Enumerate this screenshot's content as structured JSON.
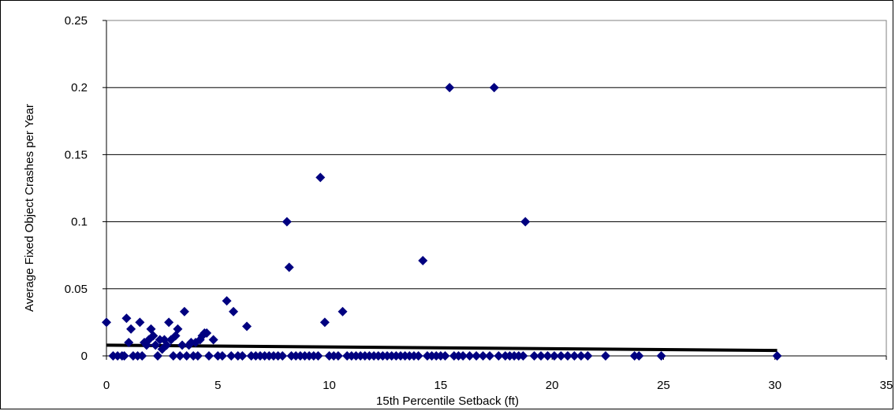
{
  "chart_data": {
    "type": "scatter",
    "title": "",
    "xlabel": "15th Percentile Setback (ft)",
    "ylabel": "Average Fixed Object Crashes per Year",
    "xlim": [
      0,
      35
    ],
    "ylim": [
      0,
      0.25
    ],
    "x_ticks": [
      "0",
      "5",
      "10",
      "15",
      "20",
      "25",
      "30",
      "35"
    ],
    "y_ticks": [
      "0",
      "0.05",
      "0.1",
      "0.15",
      "0.2",
      "0.25"
    ],
    "grid": "horizontal",
    "legend": "none",
    "colors": {
      "points": "#000080",
      "trend": "#000000",
      "grid": "#000000"
    },
    "series": [
      {
        "marker": "diamond",
        "points": [
          [
            0.0,
            0.025
          ],
          [
            0.3,
            0.0
          ],
          [
            0.5,
            0.0
          ],
          [
            0.7,
            0.0
          ],
          [
            0.8,
            0.0
          ],
          [
            0.9,
            0.028
          ],
          [
            1.0,
            0.01
          ],
          [
            1.1,
            0.02
          ],
          [
            1.2,
            0.0
          ],
          [
            1.4,
            0.0
          ],
          [
            1.5,
            0.025
          ],
          [
            1.6,
            0.0
          ],
          [
            1.7,
            0.01
          ],
          [
            1.8,
            0.008
          ],
          [
            1.9,
            0.012
          ],
          [
            2.0,
            0.02
          ],
          [
            2.1,
            0.015
          ],
          [
            2.2,
            0.008
          ],
          [
            2.3,
            0.0
          ],
          [
            2.4,
            0.012
          ],
          [
            2.5,
            0.005
          ],
          [
            2.6,
            0.012
          ],
          [
            2.7,
            0.008
          ],
          [
            2.8,
            0.025
          ],
          [
            2.9,
            0.012
          ],
          [
            3.0,
            0.0
          ],
          [
            3.1,
            0.015
          ],
          [
            3.2,
            0.02
          ],
          [
            3.3,
            0.0
          ],
          [
            3.4,
            0.008
          ],
          [
            3.5,
            0.033
          ],
          [
            3.6,
            0.0
          ],
          [
            3.7,
            0.008
          ],
          [
            3.8,
            0.01
          ],
          [
            3.9,
            0.0
          ],
          [
            4.0,
            0.01
          ],
          [
            4.1,
            0.0
          ],
          [
            4.2,
            0.012
          ],
          [
            4.3,
            0.015
          ],
          [
            4.4,
            0.017
          ],
          [
            4.5,
            0.017
          ],
          [
            4.6,
            0.0
          ],
          [
            4.8,
            0.012
          ],
          [
            5.0,
            0.0
          ],
          [
            5.2,
            0.0
          ],
          [
            5.4,
            0.041
          ],
          [
            5.6,
            0.0
          ],
          [
            5.7,
            0.033
          ],
          [
            5.9,
            0.0
          ],
          [
            6.1,
            0.0
          ],
          [
            6.3,
            0.022
          ],
          [
            6.5,
            0.0
          ],
          [
            6.7,
            0.0
          ],
          [
            6.9,
            0.0
          ],
          [
            7.1,
            0.0
          ],
          [
            7.3,
            0.0
          ],
          [
            7.5,
            0.0
          ],
          [
            7.7,
            0.0
          ],
          [
            7.9,
            0.0
          ],
          [
            8.1,
            0.1
          ],
          [
            8.2,
            0.066
          ],
          [
            8.3,
            0.0
          ],
          [
            8.5,
            0.0
          ],
          [
            8.7,
            0.0
          ],
          [
            8.9,
            0.0
          ],
          [
            9.1,
            0.0
          ],
          [
            9.3,
            0.0
          ],
          [
            9.5,
            0.0
          ],
          [
            9.6,
            0.133
          ],
          [
            9.8,
            0.025
          ],
          [
            10.0,
            0.0
          ],
          [
            10.2,
            0.0
          ],
          [
            10.4,
            0.0
          ],
          [
            10.6,
            0.033
          ],
          [
            10.8,
            0.0
          ],
          [
            11.0,
            0.0
          ],
          [
            11.2,
            0.0
          ],
          [
            11.4,
            0.0
          ],
          [
            11.6,
            0.0
          ],
          [
            11.8,
            0.0
          ],
          [
            12.0,
            0.0
          ],
          [
            12.2,
            0.0
          ],
          [
            12.4,
            0.0
          ],
          [
            12.6,
            0.0
          ],
          [
            12.8,
            0.0
          ],
          [
            13.0,
            0.0
          ],
          [
            13.2,
            0.0
          ],
          [
            13.4,
            0.0
          ],
          [
            13.6,
            0.0
          ],
          [
            13.8,
            0.0
          ],
          [
            14.0,
            0.0
          ],
          [
            14.2,
            0.071
          ],
          [
            14.4,
            0.0
          ],
          [
            14.6,
            0.0
          ],
          [
            14.8,
            0.0
          ],
          [
            15.0,
            0.0
          ],
          [
            15.2,
            0.0
          ],
          [
            15.4,
            0.2
          ],
          [
            15.6,
            0.0
          ],
          [
            15.8,
            0.0
          ],
          [
            16.0,
            0.0
          ],
          [
            16.3,
            0.0
          ],
          [
            16.6,
            0.0
          ],
          [
            16.9,
            0.0
          ],
          [
            17.2,
            0.0
          ],
          [
            17.4,
            0.2
          ],
          [
            17.6,
            0.0
          ],
          [
            17.9,
            0.0
          ],
          [
            18.1,
            0.0
          ],
          [
            18.3,
            0.0
          ],
          [
            18.5,
            0.0
          ],
          [
            18.7,
            0.0
          ],
          [
            18.8,
            0.1
          ],
          [
            19.2,
            0.0
          ],
          [
            19.5,
            0.0
          ],
          [
            19.8,
            0.0
          ],
          [
            20.1,
            0.0
          ],
          [
            20.4,
            0.0
          ],
          [
            20.7,
            0.0
          ],
          [
            21.0,
            0.0
          ],
          [
            21.3,
            0.0
          ],
          [
            21.6,
            0.0
          ],
          [
            22.4,
            0.0
          ],
          [
            23.7,
            0.0
          ],
          [
            23.9,
            0.0
          ],
          [
            24.9,
            0.0
          ],
          [
            30.1,
            0.0
          ]
        ]
      }
    ],
    "trendline": {
      "x": [
        0,
        30.1
      ],
      "y": [
        0.008,
        0.004
      ]
    }
  }
}
